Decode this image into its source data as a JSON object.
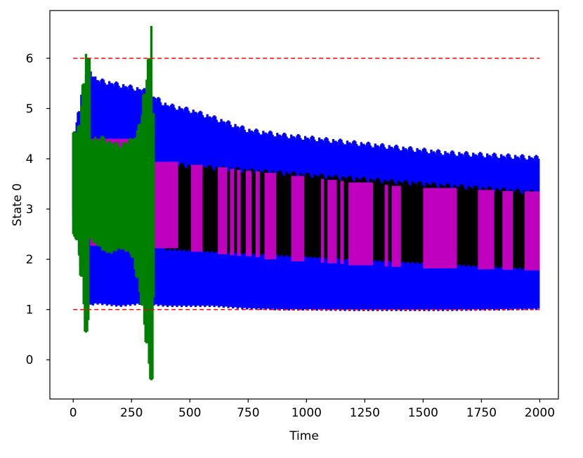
{
  "chart_data": {
    "type": "line",
    "title": "",
    "xlabel": "Time",
    "ylabel": "State 0",
    "xlim": [
      -100,
      2080
    ],
    "ylim": [
      -0.78,
      6.95
    ],
    "xticks": [
      0,
      250,
      500,
      750,
      1000,
      1250,
      1500,
      1750,
      2000
    ],
    "xtick_labels": [
      "0",
      "250",
      "500",
      "750",
      "1000",
      "1250",
      "1500",
      "1750",
      "2000"
    ],
    "yticks": [
      0,
      1,
      2,
      3,
      4,
      5,
      6
    ],
    "ytick_labels": [
      "0",
      "1",
      "2",
      "3",
      "4",
      "5",
      "6"
    ],
    "grid": false,
    "legend": "none",
    "reference_lines": [
      {
        "y": 6,
        "x_range": [
          0,
          2000
        ],
        "color": "#ff0000",
        "style": "dashed"
      },
      {
        "y": 1,
        "x_range": [
          0,
          2000
        ],
        "color": "#ff0000",
        "style": "dashed"
      }
    ],
    "series": [
      {
        "color": "#0000ff",
        "kind": "oscillation-envelope",
        "x": [
          0,
          60,
          100,
          200,
          300,
          400,
          500,
          600,
          750,
          900,
          1000,
          1200,
          1400,
          1600,
          1800,
          2000
        ],
        "upper": [
          4.4,
          5.9,
          5.6,
          5.5,
          5.4,
          5.1,
          5.0,
          4.85,
          4.6,
          4.5,
          4.45,
          4.35,
          4.25,
          4.15,
          4.1,
          4.05
        ],
        "lower": [
          2.9,
          1.05,
          1.1,
          1.05,
          1.1,
          1.05,
          1.05,
          1.05,
          1.0,
          0.98,
          0.98,
          0.97,
          0.97,
          0.97,
          0.98,
          0.99
        ]
      },
      {
        "color": "#000000",
        "kind": "oscillation-envelope",
        "x": [
          400,
          2000
        ],
        "upper": [
          3.92,
          3.35
        ],
        "lower": [
          2.18,
          1.78
        ]
      },
      {
        "color": "#bf00bf",
        "kind": "segments",
        "segments": [
          [
            0,
            36,
            4.45,
            2.52
          ],
          [
            72,
            285,
            4.4,
            2.27
          ],
          [
            325,
            350,
            3.95,
            2.25
          ],
          [
            350,
            450,
            3.94,
            2.22
          ],
          [
            505,
            555,
            3.88,
            2.15
          ],
          [
            620,
            660,
            3.83,
            2.1
          ],
          [
            672,
            690,
            3.8,
            2.08
          ],
          [
            702,
            718,
            3.78,
            2.07
          ],
          [
            740,
            765,
            3.76,
            2.06
          ],
          [
            782,
            800,
            3.75,
            2.04
          ],
          [
            820,
            870,
            3.72,
            2.0
          ],
          [
            935,
            990,
            3.66,
            1.96
          ],
          [
            1062,
            1075,
            3.6,
            1.93
          ],
          [
            1090,
            1130,
            3.58,
            1.92
          ],
          [
            1145,
            1160,
            3.56,
            1.91
          ],
          [
            1180,
            1285,
            3.53,
            1.88
          ],
          [
            1335,
            1350,
            3.48,
            1.86
          ],
          [
            1365,
            1405,
            3.46,
            1.85
          ],
          [
            1500,
            1645,
            3.42,
            1.82
          ],
          [
            1735,
            1805,
            3.38,
            1.8
          ],
          [
            1840,
            1885,
            3.36,
            1.79
          ],
          [
            1935,
            2000,
            3.35,
            1.78
          ]
        ]
      },
      {
        "color": "#008000",
        "kind": "oscillation-envelope",
        "x": [
          0,
          20,
          40,
          62,
          72,
          90,
          110,
          130,
          160,
          200,
          250,
          280,
          300,
          320,
          336,
          350
        ],
        "upper": [
          4.5,
          4.6,
          5.2,
          6.65,
          4.45,
          4.45,
          4.4,
          4.45,
          4.35,
          4.3,
          4.4,
          4.6,
          5.1,
          5.8,
          6.7,
          3.95
        ],
        "lower": [
          2.5,
          2.3,
          1.4,
          0.1,
          2.4,
          2.3,
          2.25,
          2.15,
          2.1,
          2.2,
          2.1,
          1.5,
          0.9,
          0.1,
          -0.47,
          2.2
        ]
      }
    ]
  }
}
